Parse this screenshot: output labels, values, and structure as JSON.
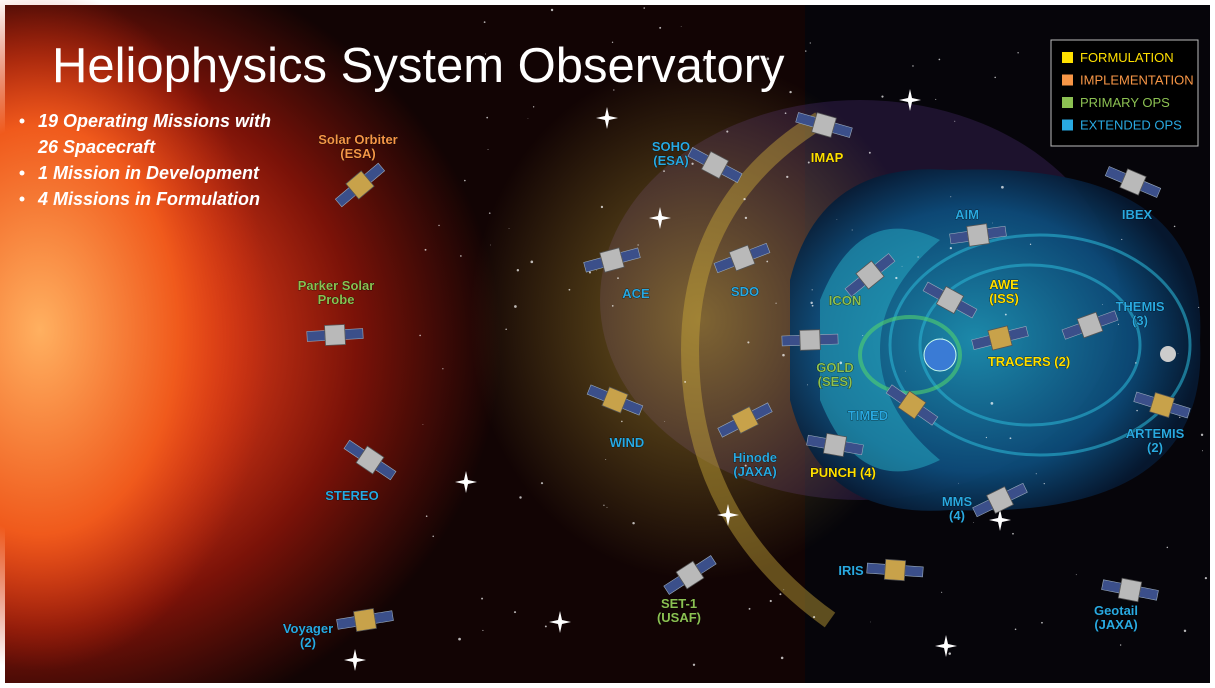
{
  "title": "Heliophysics System Observatory",
  "bullets": [
    [
      "19 Operating Missions with",
      "26 Spacecraft"
    ],
    [
      "1 Mission in Development"
    ],
    [
      "4 Missions in Formulation"
    ]
  ],
  "legend": [
    {
      "label": "FORMULATION",
      "color": "#ffe000"
    },
    {
      "label": "IMPLEMENTATION",
      "color": "#f79646"
    },
    {
      "label": "PRIMARY OPS",
      "color": "#8cc152"
    },
    {
      "label": "EXTENDED OPS",
      "color": "#29a9e1"
    }
  ],
  "spacecraft": [
    {
      "lines": [
        "Solar Orbiter",
        "(ESA)"
      ],
      "color": "#f79646"
    },
    {
      "lines": [
        "Parker Solar",
        "Probe"
      ],
      "color": "#8cc152"
    },
    {
      "lines": [
        "STEREO"
      ],
      "color": "#29a9e1"
    },
    {
      "lines": [
        "Voyager",
        "(2)"
      ],
      "color": "#29a9e1"
    },
    {
      "lines": [
        "SOHO",
        "(ESA)"
      ],
      "color": "#29a9e1"
    },
    {
      "lines": [
        "ACE"
      ],
      "color": "#29a9e1"
    },
    {
      "lines": [
        "WIND"
      ],
      "color": "#29a9e1"
    },
    {
      "lines": [
        "SDO"
      ],
      "color": "#29a9e1"
    },
    {
      "lines": [
        "IMAP"
      ],
      "color": "#ffe000"
    },
    {
      "lines": [
        "Hinode",
        "(JAXA)"
      ],
      "color": "#29a9e1"
    },
    {
      "lines": [
        "PUNCH (4)"
      ],
      "color": "#ffe000"
    },
    {
      "lines": [
        "SET-1",
        "(USAF)"
      ],
      "color": "#8cc152"
    },
    {
      "lines": [
        "IRIS"
      ],
      "color": "#29a9e1"
    },
    {
      "lines": [
        "ICON"
      ],
      "color": "#8cc152"
    },
    {
      "lines": [
        "GOLD",
        "(SES)"
      ],
      "color": "#8cc152"
    },
    {
      "lines": [
        "TIMED"
      ],
      "color": "#29a9e1"
    },
    {
      "lines": [
        "AIM"
      ],
      "color": "#29a9e1"
    },
    {
      "lines": [
        "AWE",
        "(ISS)"
      ],
      "color": "#ffe000"
    },
    {
      "lines": [
        "TRACERS (2)"
      ],
      "color": "#ffe000"
    },
    {
      "lines": [
        "IBEX"
      ],
      "color": "#29a9e1"
    },
    {
      "lines": [
        "THEMIS",
        "(3)"
      ],
      "color": "#29a9e1"
    },
    {
      "lines": [
        "ARTEMIS",
        "(2)"
      ],
      "color": "#29a9e1"
    },
    {
      "lines": [
        "MMS",
        "(4)"
      ],
      "color": "#29a9e1"
    },
    {
      "lines": [
        "Geotail",
        "(JAXA)"
      ],
      "color": "#29a9e1"
    }
  ]
}
